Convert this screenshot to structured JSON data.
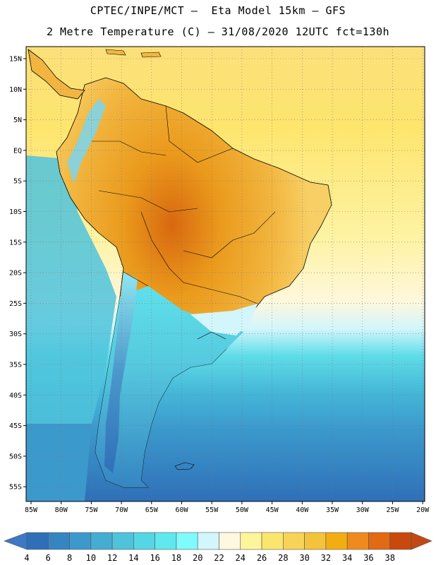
{
  "title_line1": "CPTEC/INPE/MCT –  Eta Model 15km – GFS",
  "title_line2": "2 Metre Temperature (C) – 31/08/2020 12UTC fct=130h",
  "lat_labels": [
    "15N",
    "10N",
    "5N",
    "EQ",
    "5S",
    "10S",
    "15S",
    "20S",
    "25S",
    "30S",
    "35S",
    "40S",
    "45S",
    "50S",
    "55S"
  ],
  "lon_labels": [
    "85W",
    "80W",
    "75W",
    "70W",
    "65W",
    "60W",
    "55W",
    "50W",
    "45W",
    "40W",
    "35W",
    "30W",
    "25W",
    "20W"
  ],
  "colorbar": {
    "ticks": [
      "4",
      "6",
      "8",
      "10",
      "12",
      "14",
      "16",
      "18",
      "20",
      "22",
      "24",
      "26",
      "28",
      "30",
      "32",
      "34",
      "36",
      "38"
    ],
    "colors": [
      "#2f6fb8",
      "#3585c2",
      "#3c99cc",
      "#45add3",
      "#4fc3dc",
      "#55d6e4",
      "#5fe9ee",
      "#7ffafd",
      "#d2f6fb",
      "#fff8e0",
      "#fdf59a",
      "#fbe66d",
      "#f7d457",
      "#f4c33c",
      "#f2ad12",
      "#ef8b1c",
      "#e26a12",
      "#c9480c"
    ],
    "low_color": "#3c78c4",
    "high_color": "#c24a12"
  }
}
